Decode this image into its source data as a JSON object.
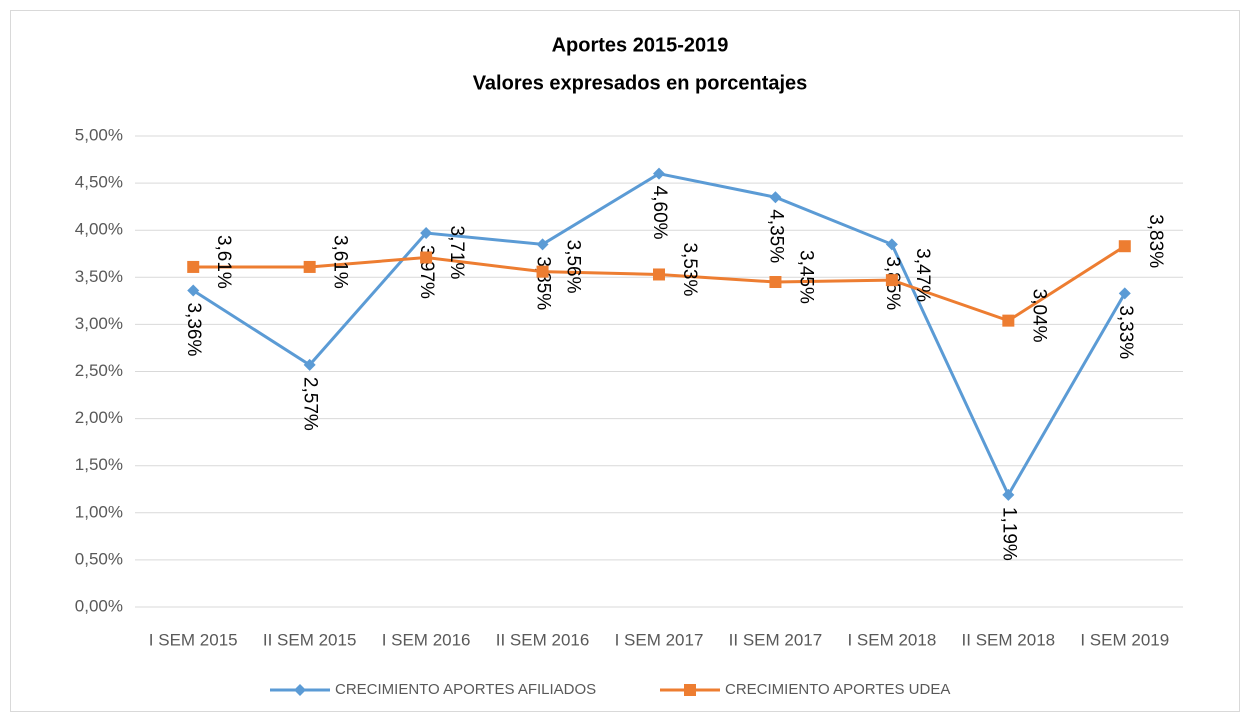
{
  "chart_data": {
    "type": "line",
    "title": "Aportes 2015-2019",
    "subtitle": "Valores expresados en porcentajes",
    "categories": [
      "I SEM 2015",
      "II SEM 2015",
      "I SEM 2016",
      "II SEM 2016",
      "I SEM 2017",
      "II SEM 2017",
      "I SEM 2018",
      "II SEM 2018",
      "I SEM 2019"
    ],
    "series": [
      {
        "name": "CRECIMIENTO APORTES AFILIADOS",
        "color": "#5b9bd5",
        "marker": "diamond",
        "values": [
          3.36,
          2.57,
          3.97,
          3.85,
          4.6,
          4.35,
          3.85,
          1.19,
          3.33
        ],
        "value_labels": [
          "3,36%",
          "2,57%",
          "3,97%",
          "3,85%",
          "4,60%",
          "4,35%",
          "3,85%",
          "1,19%",
          "3,33%"
        ]
      },
      {
        "name": "CRECIMIENTO APORTES UDEA",
        "color": "#ed7d31",
        "marker": "square",
        "values": [
          3.61,
          3.61,
          3.71,
          3.56,
          3.53,
          3.45,
          3.47,
          3.04,
          3.83
        ],
        "value_labels": [
          "3,61%",
          "3,61%",
          "3,71%",
          "3,56%",
          "3,53%",
          "3,45%",
          "3,47%",
          "3,04%",
          "3,83%"
        ]
      }
    ],
    "ylim": [
      0,
      5
    ],
    "yticks": [
      {
        "value": 0,
        "label": "0,00%"
      },
      {
        "value": 0.5,
        "label": "0,50%"
      },
      {
        "value": 1,
        "label": "1,00%"
      },
      {
        "value": 1.5,
        "label": "1,50%"
      },
      {
        "value": 2,
        "label": "2,00%"
      },
      {
        "value": 2.5,
        "label": "2,50%"
      },
      {
        "value": 3,
        "label": "3,00%"
      },
      {
        "value": 3.5,
        "label": "3,50%"
      },
      {
        "value": 4,
        "label": "4,00%"
      },
      {
        "value": 4.5,
        "label": "4,50%"
      },
      {
        "value": 5,
        "label": "5,00%"
      }
    ],
    "grid": true,
    "legend": "bottom"
  }
}
